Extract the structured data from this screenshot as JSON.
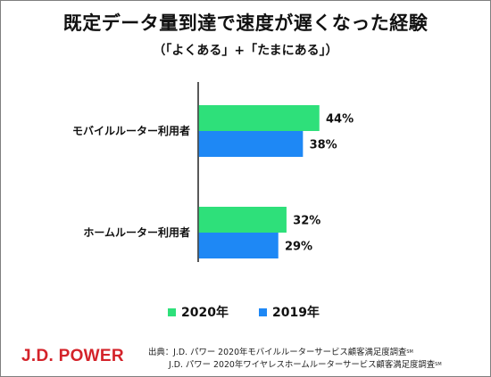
{
  "header": {
    "title": "既定データ量到達で速度が遅くなった経験",
    "subtitle": "（「よくある」+「たまにある」）"
  },
  "colors": {
    "series_2020": "#2ee07a",
    "series_2019": "#1e88f5",
    "axis": "#222222",
    "logo": "#d4232a"
  },
  "chart_data": {
    "type": "bar",
    "orientation": "horizontal",
    "categories": [
      "モバイルルーター利用者",
      "ホームルーター利用者"
    ],
    "series": [
      {
        "name": "2020年",
        "values": [
          44,
          32
        ],
        "labels": [
          "44%",
          "32%"
        ]
      },
      {
        "name": "2019年",
        "values": [
          38,
          29
        ],
        "labels": [
          "38%",
          "29%"
        ]
      }
    ],
    "value_unit": "%",
    "legend_position": "bottom",
    "grid": false
  },
  "legend": {
    "items": [
      "2020年",
      "2019年"
    ]
  },
  "footer": {
    "logo": "J.D. POWER",
    "source_prefix": "出典：",
    "source_line1": "J.D. パワー 2020年モバイルルーターサービス顧客満足度調査",
    "source_line2": "J.D. パワー 2020年ワイヤレスホームルーターサービス顧客満足度調査",
    "mark": "SM"
  }
}
